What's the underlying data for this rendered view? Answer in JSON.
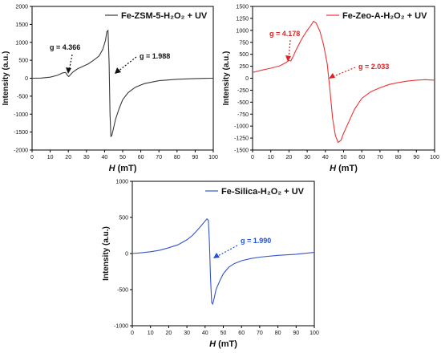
{
  "chart_data": [
    {
      "type": "line",
      "legend": "Fe-ZSM-5-H₂O₂ + UV",
      "legend_position": "top-right",
      "color": "#3a3a3a",
      "xlabel_italic": "H",
      "xlabel_unit": " (mT)",
      "ylabel": "Intensity (a.u.)",
      "xlim": [
        0,
        100
      ],
      "ylim": [
        -2000,
        2000
      ],
      "xticks": [
        0,
        10,
        20,
        30,
        40,
        50,
        60,
        70,
        80,
        90,
        100
      ],
      "yticks": [
        -2000,
        -1500,
        -1000,
        -500,
        0,
        500,
        1000,
        1500,
        2000
      ],
      "grid": false,
      "series": [
        {
          "x": [
            0,
            5,
            10,
            14,
            17,
            18.5,
            19.5,
            20.2,
            21,
            22.5,
            25,
            28,
            31,
            34,
            37,
            39,
            40.5,
            41.3,
            41.9,
            42.5,
            43,
            43.5,
            44,
            45,
            46,
            48,
            50,
            53,
            57,
            62,
            70,
            80,
            90,
            100
          ],
          "y": [
            0,
            5,
            30,
            80,
            150,
            160,
            80,
            45,
            90,
            170,
            260,
            330,
            400,
            500,
            620,
            800,
            1050,
            1300,
            1330,
            400,
            -1000,
            -1620,
            -1600,
            -1380,
            -1150,
            -850,
            -600,
            -400,
            -250,
            -150,
            -70,
            -30,
            -10,
            0
          ]
        }
      ],
      "annotations": [
        {
          "text": "g = 4.366",
          "x": 20,
          "y": 80
        },
        {
          "text": "g = 1.988",
          "x": 43,
          "y": -180
        }
      ]
    },
    {
      "type": "line",
      "legend": "Fe-Zeo-A-H₂O₂ + UV",
      "legend_position": "top-right",
      "color": "#ee3333",
      "annotation_color": "#e02020",
      "xlabel_italic": "H",
      "xlabel_unit": " (mT)",
      "ylabel": "Intensity (a.u.)",
      "xlim": [
        0,
        100
      ],
      "ylim": [
        -1500,
        1500
      ],
      "xticks": [
        0,
        10,
        20,
        30,
        40,
        50,
        60,
        70,
        80,
        90,
        100
      ],
      "yticks": [
        -1500,
        -1250,
        -1000,
        -750,
        -500,
        -250,
        0,
        250,
        500,
        750,
        1000,
        1250,
        1500
      ],
      "grid": false,
      "series": [
        {
          "x": [
            0,
            5,
            10,
            15,
            18,
            20,
            21,
            22,
            24,
            27,
            30,
            32,
            33.5,
            35,
            37,
            39,
            41,
            42.5,
            44,
            45.5,
            47,
            48.5,
            50,
            53,
            56,
            60,
            65,
            70,
            75,
            80,
            85,
            90,
            95,
            100
          ],
          "y": [
            120,
            170,
            210,
            260,
            320,
            370,
            360,
            430,
            600,
            820,
            1000,
            1100,
            1190,
            1150,
            980,
            700,
            300,
            -250,
            -850,
            -1200,
            -1340,
            -1300,
            -1150,
            -900,
            -650,
            -420,
            -280,
            -200,
            -130,
            -90,
            -60,
            -40,
            -30,
            -40
          ]
        }
      ],
      "annotations": [
        {
          "text": "g = 4.178",
          "x": 21,
          "y": 350
        },
        {
          "text": "g = 2.033",
          "x": 44,
          "y": 0
        }
      ]
    },
    {
      "type": "line",
      "legend": "Fe-Silica-H₂O₂ + UV",
      "legend_position": "top-right",
      "color": "#3355cc",
      "annotation_color": "#2050e0",
      "xlabel_italic": "H",
      "xlabel_unit": " (mT)",
      "ylabel": "Intensity (a.u.)",
      "xlim": [
        0,
        100
      ],
      "ylim": [
        -1000,
        1000
      ],
      "xticks": [
        0,
        10,
        20,
        30,
        40,
        50,
        60,
        70,
        80,
        90,
        100
      ],
      "yticks": [
        -1000,
        -500,
        0,
        500,
        1000
      ],
      "grid": false,
      "series": [
        {
          "x": [
            0,
            5,
            10,
            15,
            20,
            25,
            30,
            33,
            36,
            38,
            40,
            41,
            41.8,
            42.4,
            43,
            43.6,
            44.2,
            45,
            46,
            48,
            50,
            53,
            56,
            60,
            65,
            70,
            80,
            90,
            100
          ],
          "y": [
            0,
            10,
            25,
            45,
            80,
            120,
            190,
            250,
            330,
            390,
            450,
            480,
            460,
            150,
            -350,
            -680,
            -700,
            -620,
            -500,
            -380,
            -280,
            -190,
            -140,
            -100,
            -70,
            -50,
            -25,
            -10,
            15
          ]
        }
      ],
      "annotations": [
        {
          "text": "g = 1.990",
          "x": 44,
          "y": -100
        }
      ]
    }
  ]
}
